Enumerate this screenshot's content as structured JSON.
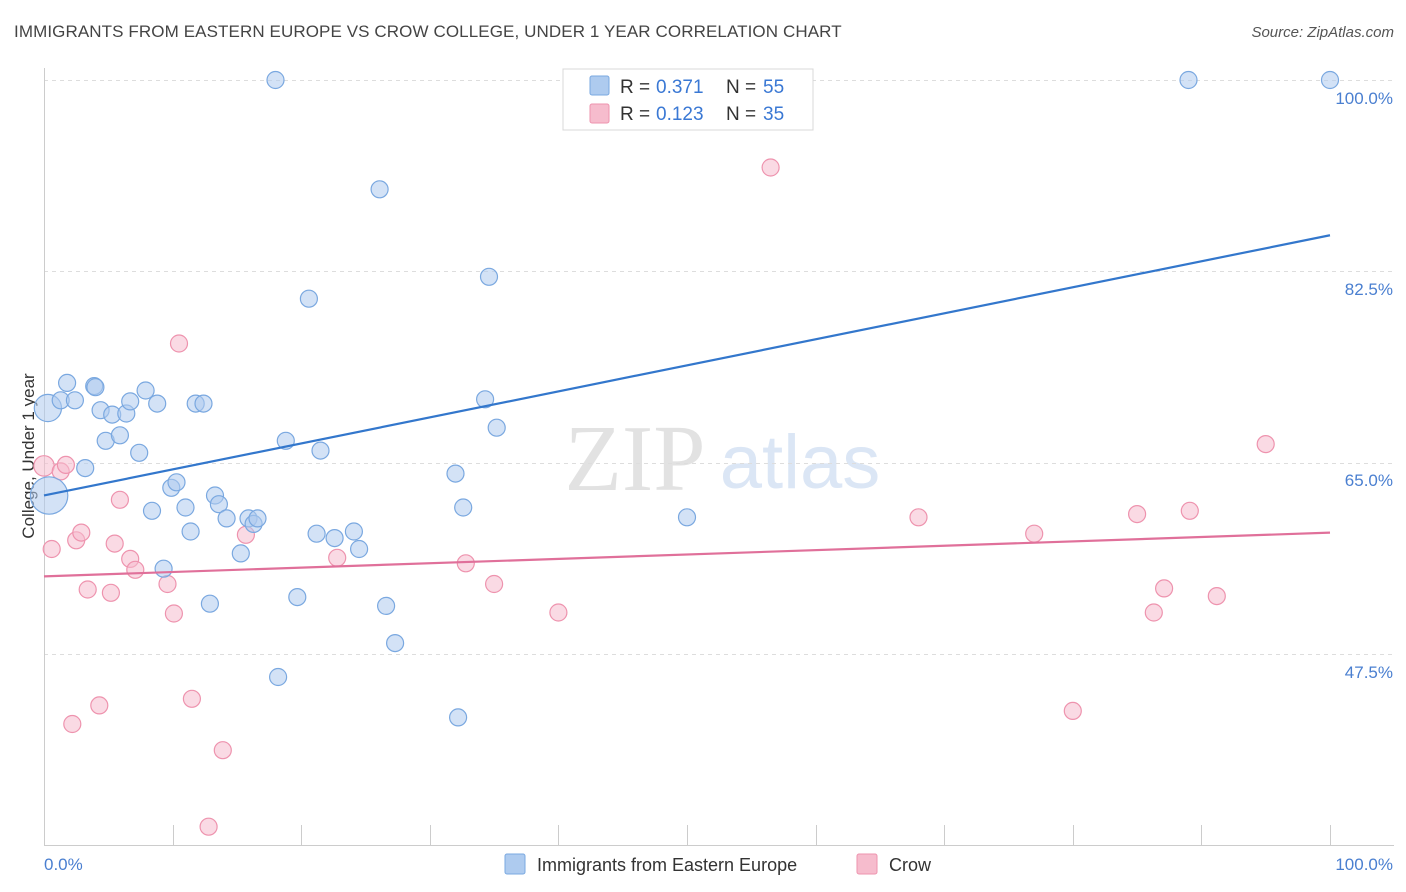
{
  "chart_data": {
    "type": "scatter",
    "title": "IMMIGRANTS FROM EASTERN EUROPE VS CROW COLLEGE, UNDER 1 YEAR CORRELATION CHART",
    "source": "Source: ZipAtlas.com",
    "watermark": {
      "zip": "ZIP",
      "atlas": "atlas"
    },
    "xlabel": "",
    "ylabel": "College, Under 1 year",
    "xlim": [
      0,
      100
    ],
    "ylim": [
      32.5,
      103.5
    ],
    "x_tick_labels": {
      "left": "0.0%",
      "right": "100.0%"
    },
    "y_ticks": [
      {
        "value": 100.0,
        "label": "100.0%"
      },
      {
        "value": 82.5,
        "label": "82.5%"
      },
      {
        "value": 65.0,
        "label": "65.0%"
      },
      {
        "value": 47.5,
        "label": "47.5%"
      }
    ],
    "legend": {
      "position": "top-center",
      "rows": [
        {
          "r_label": "R = ",
          "r_value": "0.371",
          "n_label": "N = ",
          "n_value": "55"
        },
        {
          "r_label": "R = ",
          "r_value": "0.123",
          "n_label": "N = ",
          "n_value": "35"
        }
      ]
    },
    "bottom_legend": [
      "Immigrants from Eastern Europe",
      "Crow"
    ],
    "colors": {
      "blue_fill": "#aecbef",
      "blue_stroke": "#7aa8e0",
      "blue_line": "#3377cc",
      "pink_fill": "#f6bccd",
      "pink_stroke": "#ee93ae",
      "pink_line": "#e0709a",
      "tick_text": "#4a7fd0",
      "grid": "#dddddd"
    },
    "series": [
      {
        "name": "Immigrants from Eastern Europe",
        "trend": {
          "x": [
            0,
            100
          ],
          "y": [
            62.0,
            85.8
          ]
        },
        "points": [
          {
            "x": 0.3,
            "y": 70.0,
            "s": 1.6
          },
          {
            "x": 0.4,
            "y": 62.0,
            "s": 2.2
          },
          {
            "x": 1.3,
            "y": 70.7,
            "s": 1
          },
          {
            "x": 1.8,
            "y": 72.3,
            "s": 1
          },
          {
            "x": 2.4,
            "y": 70.7,
            "s": 1
          },
          {
            "x": 3.2,
            "y": 64.5,
            "s": 1
          },
          {
            "x": 3.9,
            "y": 72.0,
            "s": 1
          },
          {
            "x": 4.0,
            "y": 71.9,
            "s": 1
          },
          {
            "x": 4.4,
            "y": 69.8,
            "s": 1
          },
          {
            "x": 4.8,
            "y": 67.0,
            "s": 1
          },
          {
            "x": 5.3,
            "y": 69.4,
            "s": 1
          },
          {
            "x": 5.9,
            "y": 67.5,
            "s": 1
          },
          {
            "x": 6.4,
            "y": 69.5,
            "s": 1
          },
          {
            "x": 6.7,
            "y": 70.6,
            "s": 1
          },
          {
            "x": 7.4,
            "y": 65.9,
            "s": 1
          },
          {
            "x": 7.9,
            "y": 71.6,
            "s": 1
          },
          {
            "x": 8.4,
            "y": 60.6,
            "s": 1
          },
          {
            "x": 8.8,
            "y": 70.4,
            "s": 1
          },
          {
            "x": 9.3,
            "y": 55.3,
            "s": 1
          },
          {
            "x": 9.9,
            "y": 62.7,
            "s": 1
          },
          {
            "x": 10.3,
            "y": 63.2,
            "s": 1
          },
          {
            "x": 11.0,
            "y": 60.9,
            "s": 1
          },
          {
            "x": 11.4,
            "y": 58.7,
            "s": 1
          },
          {
            "x": 11.8,
            "y": 70.4,
            "s": 1
          },
          {
            "x": 12.4,
            "y": 70.4,
            "s": 1
          },
          {
            "x": 12.9,
            "y": 52.1,
            "s": 1
          },
          {
            "x": 13.3,
            "y": 62.0,
            "s": 1
          },
          {
            "x": 13.6,
            "y": 61.2,
            "s": 1
          },
          {
            "x": 14.2,
            "y": 59.9,
            "s": 1
          },
          {
            "x": 15.3,
            "y": 56.7,
            "s": 1
          },
          {
            "x": 15.9,
            "y": 59.9,
            "s": 1
          },
          {
            "x": 16.3,
            "y": 59.4,
            "s": 1
          },
          {
            "x": 16.6,
            "y": 59.9,
            "s": 1
          },
          {
            "x": 18.0,
            "y": 100.0,
            "s": 1
          },
          {
            "x": 18.2,
            "y": 45.4,
            "s": 1
          },
          {
            "x": 18.8,
            "y": 67.0,
            "s": 1
          },
          {
            "x": 19.7,
            "y": 52.7,
            "s": 1
          },
          {
            "x": 20.6,
            "y": 80.0,
            "s": 1
          },
          {
            "x": 21.2,
            "y": 58.5,
            "s": 1
          },
          {
            "x": 21.5,
            "y": 66.1,
            "s": 1
          },
          {
            "x": 22.6,
            "y": 58.1,
            "s": 1
          },
          {
            "x": 24.1,
            "y": 58.7,
            "s": 1
          },
          {
            "x": 24.5,
            "y": 57.1,
            "s": 1
          },
          {
            "x": 26.1,
            "y": 90.0,
            "s": 1
          },
          {
            "x": 26.6,
            "y": 51.9,
            "s": 1
          },
          {
            "x": 27.3,
            "y": 48.5,
            "s": 1
          },
          {
            "x": 32.0,
            "y": 64.0,
            "s": 1
          },
          {
            "x": 32.2,
            "y": 41.7,
            "s": 1
          },
          {
            "x": 32.6,
            "y": 60.9,
            "s": 1
          },
          {
            "x": 34.3,
            "y": 70.8,
            "s": 1
          },
          {
            "x": 34.6,
            "y": 82.0,
            "s": 1
          },
          {
            "x": 35.2,
            "y": 68.2,
            "s": 1
          },
          {
            "x": 50.0,
            "y": 60.0,
            "s": 1
          },
          {
            "x": 89.0,
            "y": 100.0,
            "s": 1
          },
          {
            "x": 100.0,
            "y": 100.0,
            "s": 1
          }
        ]
      },
      {
        "name": "Crow",
        "trend": {
          "x": [
            0,
            100
          ],
          "y": [
            54.6,
            58.6
          ]
        },
        "points": [
          {
            "x": 0.0,
            "y": 64.7,
            "s": 1.2
          },
          {
            "x": 0.6,
            "y": 57.1,
            "s": 1
          },
          {
            "x": 1.3,
            "y": 64.2,
            "s": 1
          },
          {
            "x": 1.7,
            "y": 64.8,
            "s": 1
          },
          {
            "x": 2.2,
            "y": 41.1,
            "s": 1
          },
          {
            "x": 2.5,
            "y": 57.9,
            "s": 1
          },
          {
            "x": 2.9,
            "y": 58.6,
            "s": 1
          },
          {
            "x": 3.4,
            "y": 53.4,
            "s": 1
          },
          {
            "x": 4.3,
            "y": 42.8,
            "s": 1
          },
          {
            "x": 5.2,
            "y": 53.1,
            "s": 1
          },
          {
            "x": 5.5,
            "y": 57.6,
            "s": 1
          },
          {
            "x": 5.9,
            "y": 61.6,
            "s": 1
          },
          {
            "x": 6.7,
            "y": 56.2,
            "s": 1
          },
          {
            "x": 7.1,
            "y": 55.2,
            "s": 1
          },
          {
            "x": 9.6,
            "y": 53.9,
            "s": 1
          },
          {
            "x": 10.1,
            "y": 51.2,
            "s": 1
          },
          {
            "x": 10.5,
            "y": 75.9,
            "s": 1
          },
          {
            "x": 11.5,
            "y": 43.4,
            "s": 1
          },
          {
            "x": 12.8,
            "y": 31.7,
            "s": 1
          },
          {
            "x": 13.9,
            "y": 38.7,
            "s": 1
          },
          {
            "x": 15.7,
            "y": 58.4,
            "s": 1
          },
          {
            "x": 22.8,
            "y": 56.3,
            "s": 1
          },
          {
            "x": 32.8,
            "y": 55.8,
            "s": 1
          },
          {
            "x": 35.0,
            "y": 53.9,
            "s": 1
          },
          {
            "x": 40.0,
            "y": 51.3,
            "s": 1
          },
          {
            "x": 56.5,
            "y": 92.0,
            "s": 1
          },
          {
            "x": 68.0,
            "y": 60.0,
            "s": 1
          },
          {
            "x": 77.0,
            "y": 58.5,
            "s": 1
          },
          {
            "x": 80.0,
            "y": 42.3,
            "s": 1
          },
          {
            "x": 85.0,
            "y": 60.3,
            "s": 1
          },
          {
            "x": 86.3,
            "y": 51.3,
            "s": 1
          },
          {
            "x": 87.1,
            "y": 53.5,
            "s": 1
          },
          {
            "x": 89.1,
            "y": 60.6,
            "s": 1
          },
          {
            "x": 91.2,
            "y": 52.8,
            "s": 1
          },
          {
            "x": 95.0,
            "y": 66.7,
            "s": 1
          }
        ]
      }
    ]
  }
}
